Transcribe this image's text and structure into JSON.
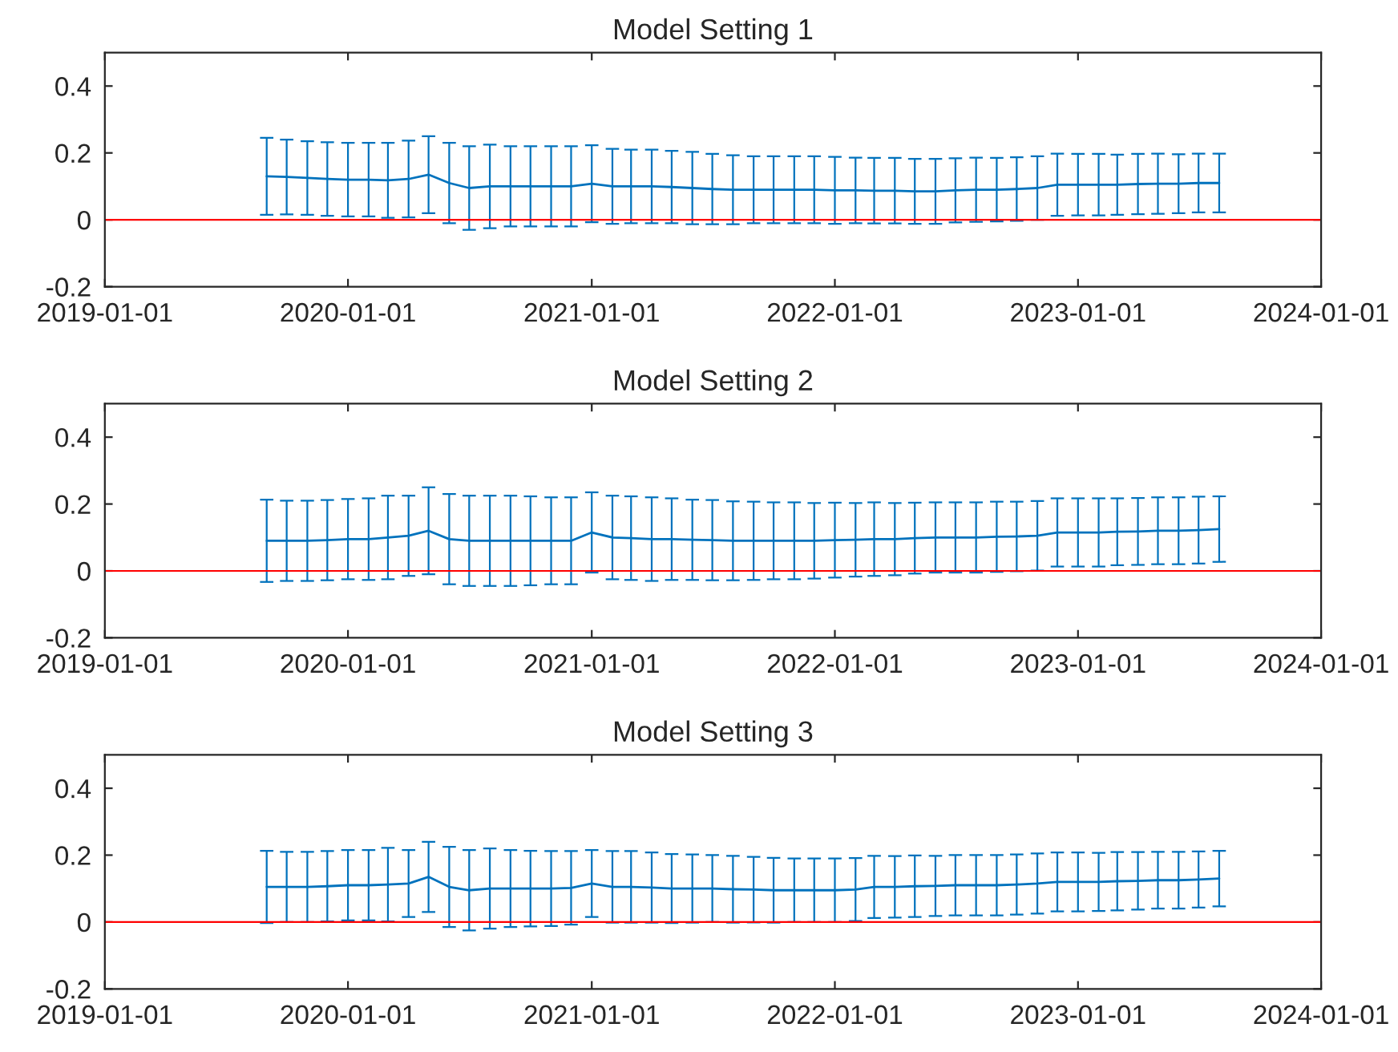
{
  "chart_data": [
    {
      "type": "line",
      "title": "Model Setting 1",
      "x": [
        "2019-09",
        "2019-10",
        "2019-11",
        "2019-12",
        "2020-01",
        "2020-02",
        "2020-03",
        "2020-04",
        "2020-05",
        "2020-06",
        "2020-07",
        "2020-08",
        "2020-09",
        "2020-10",
        "2020-11",
        "2020-12",
        "2021-01",
        "2021-02",
        "2021-03",
        "2021-04",
        "2021-05",
        "2021-06",
        "2021-07",
        "2021-08",
        "2021-09",
        "2021-10",
        "2021-11",
        "2021-12",
        "2022-01",
        "2022-02",
        "2022-03",
        "2022-04",
        "2022-05",
        "2022-06",
        "2022-07",
        "2022-08",
        "2022-09",
        "2022-10",
        "2022-11",
        "2022-12",
        "2023-01",
        "2023-02",
        "2023-03",
        "2023-04",
        "2023-05",
        "2023-06",
        "2023-07",
        "2023-08"
      ],
      "series": [
        {
          "color": "#0072bd",
          "values": [
            0.13,
            0.128,
            0.125,
            0.122,
            0.12,
            0.12,
            0.118,
            0.122,
            0.135,
            0.11,
            0.095,
            0.1,
            0.1,
            0.1,
            0.1,
            0.1,
            0.108,
            0.1,
            0.1,
            0.1,
            0.098,
            0.095,
            0.092,
            0.09,
            0.09,
            0.09,
            0.09,
            0.09,
            0.088,
            0.088,
            0.087,
            0.087,
            0.085,
            0.085,
            0.088,
            0.09,
            0.09,
            0.092,
            0.095,
            0.105,
            0.105,
            0.105,
            0.105,
            0.107,
            0.108,
            0.108,
            0.11,
            0.11
          ],
          "errors": [
            0.115,
            0.112,
            0.11,
            0.11,
            0.11,
            0.11,
            0.112,
            0.115,
            0.115,
            0.12,
            0.125,
            0.125,
            0.12,
            0.12,
            0.12,
            0.12,
            0.115,
            0.112,
            0.11,
            0.11,
            0.108,
            0.108,
            0.105,
            0.103,
            0.1,
            0.1,
            0.1,
            0.1,
            0.1,
            0.098,
            0.098,
            0.098,
            0.097,
            0.097,
            0.096,
            0.096,
            0.095,
            0.095,
            0.095,
            0.093,
            0.092,
            0.092,
            0.09,
            0.09,
            0.09,
            0.088,
            0.088,
            0.088
          ]
        }
      ],
      "xlim": [
        "2019-01-01",
        "2024-01-01"
      ],
      "xticks": [
        {
          "value": "2019-01-01",
          "label": "2019-01-01"
        },
        {
          "value": "2020-01-01",
          "label": "2020-01-01"
        },
        {
          "value": "2021-01-01",
          "label": "2021-01-01"
        },
        {
          "value": "2022-01-01",
          "label": "2022-01-01"
        },
        {
          "value": "2023-01-01",
          "label": "2023-01-01"
        },
        {
          "value": "2024-01-01",
          "label": "2024-01-01"
        }
      ],
      "ylim": [
        -0.2,
        0.5
      ],
      "yticks": [
        -0.2,
        0,
        0.2,
        0.4
      ],
      "ref_lines": [
        {
          "axis": "y",
          "value": 0,
          "color": "#ff0000"
        }
      ],
      "grid": false,
      "marker": "none",
      "line_style": "solid"
    },
    {
      "type": "line",
      "title": "Model Setting 2",
      "x": [
        "2019-09",
        "2019-10",
        "2019-11",
        "2019-12",
        "2020-01",
        "2020-02",
        "2020-03",
        "2020-04",
        "2020-05",
        "2020-06",
        "2020-07",
        "2020-08",
        "2020-09",
        "2020-10",
        "2020-11",
        "2020-12",
        "2021-01",
        "2021-02",
        "2021-03",
        "2021-04",
        "2021-05",
        "2021-06",
        "2021-07",
        "2021-08",
        "2021-09",
        "2021-10",
        "2021-11",
        "2021-12",
        "2022-01",
        "2022-02",
        "2022-03",
        "2022-04",
        "2022-05",
        "2022-06",
        "2022-07",
        "2022-08",
        "2022-09",
        "2022-10",
        "2022-11",
        "2022-12",
        "2023-01",
        "2023-02",
        "2023-03",
        "2023-04",
        "2023-05",
        "2023-06",
        "2023-07",
        "2023-08"
      ],
      "series": [
        {
          "color": "#0072bd",
          "values": [
            0.09,
            0.09,
            0.09,
            0.092,
            0.095,
            0.095,
            0.1,
            0.105,
            0.12,
            0.095,
            0.09,
            0.09,
            0.09,
            0.09,
            0.09,
            0.09,
            0.115,
            0.1,
            0.098,
            0.095,
            0.095,
            0.093,
            0.092,
            0.09,
            0.09,
            0.09,
            0.09,
            0.09,
            0.092,
            0.093,
            0.095,
            0.095,
            0.098,
            0.1,
            0.1,
            0.1,
            0.102,
            0.103,
            0.105,
            0.115,
            0.115,
            0.115,
            0.117,
            0.118,
            0.12,
            0.12,
            0.122,
            0.125
          ],
          "errors": [
            0.123,
            0.12,
            0.12,
            0.12,
            0.12,
            0.122,
            0.125,
            0.12,
            0.13,
            0.135,
            0.135,
            0.135,
            0.135,
            0.133,
            0.13,
            0.13,
            0.12,
            0.125,
            0.125,
            0.125,
            0.122,
            0.12,
            0.12,
            0.118,
            0.117,
            0.115,
            0.115,
            0.113,
            0.112,
            0.11,
            0.11,
            0.108,
            0.106,
            0.105,
            0.105,
            0.105,
            0.105,
            0.104,
            0.104,
            0.102,
            0.102,
            0.102,
            0.1,
            0.1,
            0.1,
            0.1,
            0.1,
            0.098
          ]
        }
      ],
      "xlim": [
        "2019-01-01",
        "2024-01-01"
      ],
      "xticks": [
        {
          "value": "2019-01-01",
          "label": "2019-01-01"
        },
        {
          "value": "2020-01-01",
          "label": "2020-01-01"
        },
        {
          "value": "2021-01-01",
          "label": "2021-01-01"
        },
        {
          "value": "2022-01-01",
          "label": "2022-01-01"
        },
        {
          "value": "2023-01-01",
          "label": "2023-01-01"
        },
        {
          "value": "2024-01-01",
          "label": "2024-01-01"
        }
      ],
      "ylim": [
        -0.2,
        0.5
      ],
      "yticks": [
        -0.2,
        0,
        0.2,
        0.4
      ],
      "ref_lines": [
        {
          "axis": "y",
          "value": 0,
          "color": "#ff0000"
        }
      ],
      "grid": false,
      "marker": "none",
      "line_style": "solid"
    },
    {
      "type": "line",
      "title": "Model Setting 3",
      "x": [
        "2019-09",
        "2019-10",
        "2019-11",
        "2019-12",
        "2020-01",
        "2020-02",
        "2020-03",
        "2020-04",
        "2020-05",
        "2020-06",
        "2020-07",
        "2020-08",
        "2020-09",
        "2020-10",
        "2020-11",
        "2020-12",
        "2021-01",
        "2021-02",
        "2021-03",
        "2021-04",
        "2021-05",
        "2021-06",
        "2021-07",
        "2021-08",
        "2021-09",
        "2021-10",
        "2021-11",
        "2021-12",
        "2022-01",
        "2022-02",
        "2022-03",
        "2022-04",
        "2022-05",
        "2022-06",
        "2022-07",
        "2022-08",
        "2022-09",
        "2022-10",
        "2022-11",
        "2022-12",
        "2023-01",
        "2023-02",
        "2023-03",
        "2023-04",
        "2023-05",
        "2023-06",
        "2023-07",
        "2023-08"
      ],
      "series": [
        {
          "color": "#0072bd",
          "values": [
            0.105,
            0.105,
            0.105,
            0.107,
            0.11,
            0.11,
            0.112,
            0.115,
            0.135,
            0.105,
            0.095,
            0.1,
            0.1,
            0.1,
            0.1,
            0.102,
            0.115,
            0.105,
            0.105,
            0.103,
            0.1,
            0.1,
            0.1,
            0.098,
            0.097,
            0.095,
            0.095,
            0.095,
            0.095,
            0.097,
            0.105,
            0.105,
            0.107,
            0.108,
            0.11,
            0.11,
            0.11,
            0.112,
            0.115,
            0.12,
            0.12,
            0.12,
            0.122,
            0.123,
            0.125,
            0.125,
            0.127,
            0.13
          ],
          "errors": [
            0.108,
            0.105,
            0.105,
            0.105,
            0.105,
            0.105,
            0.11,
            0.1,
            0.105,
            0.12,
            0.12,
            0.12,
            0.115,
            0.113,
            0.112,
            0.11,
            0.1,
            0.107,
            0.107,
            0.105,
            0.103,
            0.102,
            0.1,
            0.1,
            0.098,
            0.097,
            0.095,
            0.095,
            0.095,
            0.094,
            0.093,
            0.092,
            0.092,
            0.09,
            0.09,
            0.09,
            0.09,
            0.09,
            0.09,
            0.088,
            0.088,
            0.087,
            0.087,
            0.086,
            0.085,
            0.085,
            0.084,
            0.083
          ]
        }
      ],
      "xlim": [
        "2019-01-01",
        "2024-01-01"
      ],
      "xticks": [
        {
          "value": "2019-01-01",
          "label": "2019-01-01"
        },
        {
          "value": "2020-01-01",
          "label": "2020-01-01"
        },
        {
          "value": "2021-01-01",
          "label": "2021-01-01"
        },
        {
          "value": "2022-01-01",
          "label": "2022-01-01"
        },
        {
          "value": "2023-01-01",
          "label": "2023-01-01"
        },
        {
          "value": "2024-01-01",
          "label": "2024-01-01"
        }
      ],
      "ylim": [
        -0.2,
        0.5
      ],
      "yticks": [
        -0.2,
        0,
        0.2,
        0.4
      ],
      "ref_lines": [
        {
          "axis": "y",
          "value": 0,
          "color": "#ff0000"
        }
      ],
      "grid": false,
      "marker": "none",
      "line_style": "solid"
    }
  ]
}
